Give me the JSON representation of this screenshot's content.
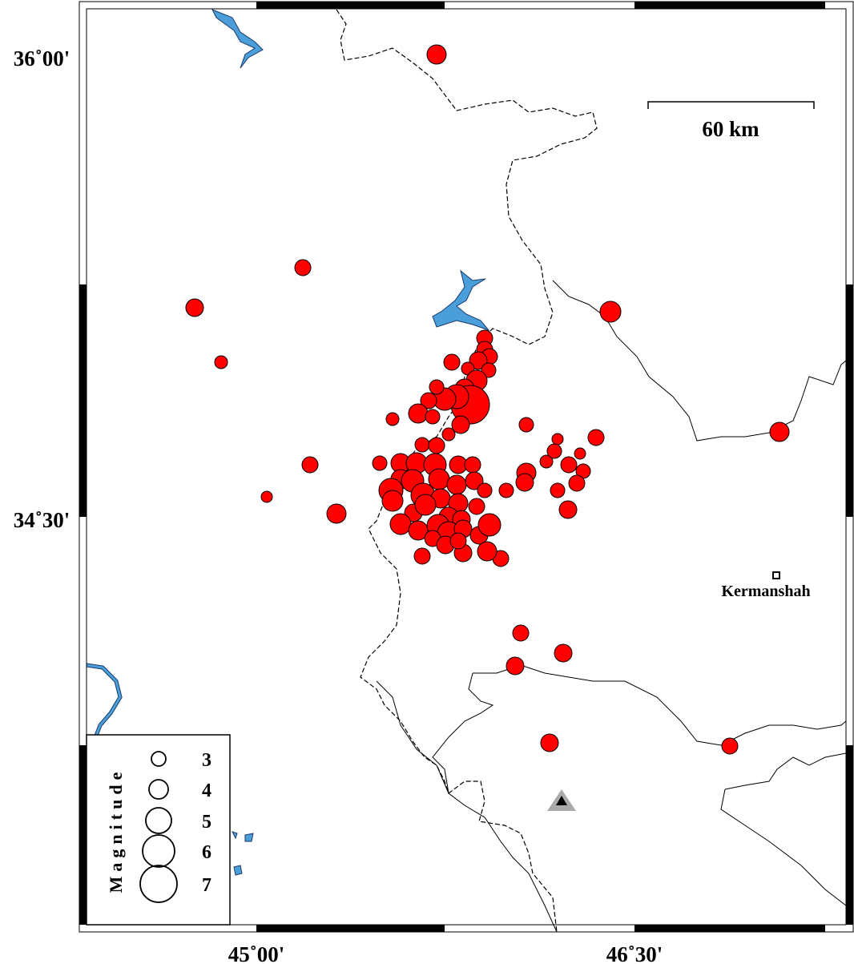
{
  "map": {
    "lat_labels": [
      "36˚00'",
      "34˚30'"
    ],
    "lon_labels": [
      "45˚00'",
      "46˚30'"
    ],
    "scale_bar": "60 km",
    "city": "Kermanshah",
    "legend": {
      "title": "Magnitude",
      "magnitudes": [
        "3",
        "4",
        "5",
        "6",
        "7"
      ]
    }
  }
}
